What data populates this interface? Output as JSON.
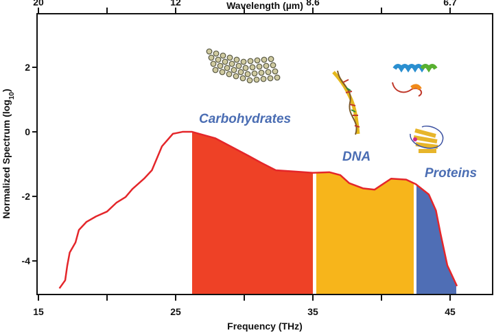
{
  "chart_data": {
    "type": "area",
    "xlabel": "Frequency (THz)",
    "ylabel": "Normalized Spectrum (log",
    "ylabel_sub": "10",
    "ylabel_end": ")",
    "top_axis_label": "Wavelength (µm)",
    "xlim": [
      14.9,
      48.1
    ],
    "ylim": [
      -5.04,
      3.66
    ],
    "x_ticks": [
      15,
      20,
      25,
      30,
      35,
      40,
      45
    ],
    "x_tick_labels": [
      "15",
      "",
      "25",
      "",
      "35",
      "",
      "45"
    ],
    "top_ticks_thz": [
      15,
      20,
      25,
      30,
      35,
      40,
      45
    ],
    "top_tick_labels": [
      "20",
      "",
      "12",
      "",
      "8.6",
      "",
      "6.7"
    ],
    "y_ticks": [
      2,
      0,
      -2,
      -4
    ],
    "y_tick_labels": [
      "2",
      "0",
      "-2",
      "-4"
    ],
    "grid": false,
    "line_color": "#e4262a",
    "curve": {
      "x": [
        16.53,
        16.95,
        17.1,
        17.28,
        17.7,
        17.95,
        18.5,
        19.2,
        20.0,
        20.7,
        21.35,
        21.85,
        22.7,
        23.27,
        24.0,
        24.8,
        25.5,
        26.2,
        27.9,
        30.3,
        31.2,
        32.3,
        33.7,
        35.0,
        36.2,
        37.0,
        37.65,
        38.65,
        39.5,
        40.1,
        40.7,
        41.8,
        42.5,
        43.45,
        43.97,
        44.3,
        44.8,
        45.5
      ],
      "y": [
        -4.85,
        -4.6,
        -4.15,
        -3.74,
        -3.43,
        -3.04,
        -2.79,
        -2.62,
        -2.47,
        -2.19,
        -2.02,
        -1.77,
        -1.45,
        -1.19,
        -0.45,
        -0.06,
        0,
        0,
        -0.2,
        -0.74,
        -0.95,
        -1.19,
        -1.23,
        -1.27,
        -1.25,
        -1.34,
        -1.59,
        -1.75,
        -1.79,
        -1.62,
        -1.45,
        -1.48,
        -1.62,
        -1.94,
        -2.44,
        -3.15,
        -4.14,
        -4.78
      ]
    },
    "regions": [
      {
        "name": "Carbohydrates",
        "x_range": [
          26.2,
          35.0
        ],
        "color": "#ee4126"
      },
      {
        "name": "DNA",
        "x_range": [
          35.25,
          42.35
        ],
        "color": "#f7b51b"
      },
      {
        "name": "Proteins",
        "x_range": [
          42.55,
          45.45
        ],
        "color": "#4f6eb5"
      }
    ],
    "label_color": "#4a6db3"
  }
}
